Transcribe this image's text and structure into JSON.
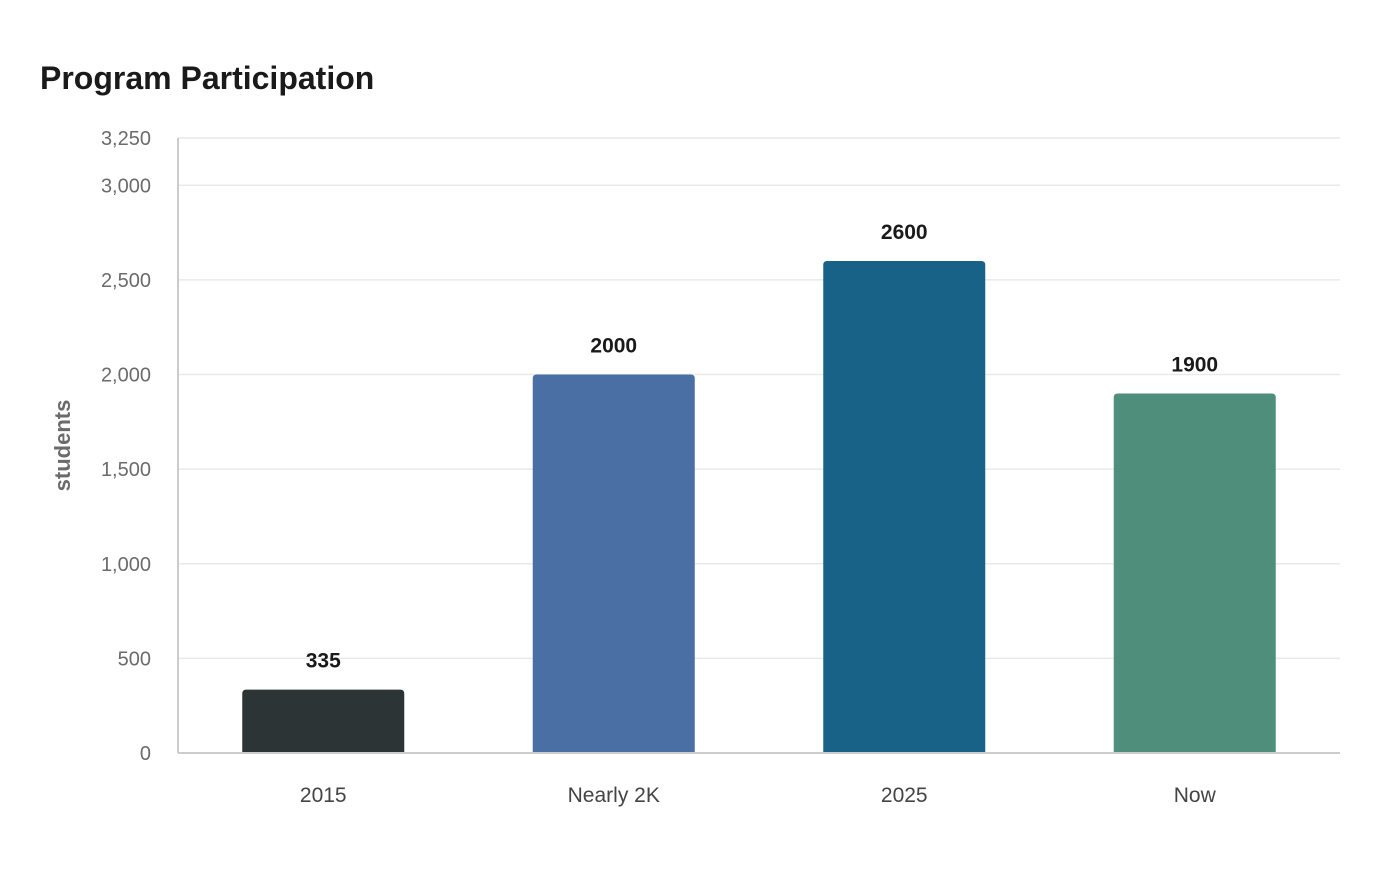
{
  "chart_data": {
    "type": "bar",
    "title": "Program Participation",
    "xlabel": "",
    "ylabel": "students",
    "categories": [
      "2015",
      "Nearly 2K",
      "2025",
      "Now"
    ],
    "values": [
      335,
      2000,
      2600,
      1900
    ],
    "data_labels": [
      "335",
      "2000",
      "2600",
      "1900"
    ],
    "colors": [
      "#2d3436",
      "#4a6fa5",
      "#186288",
      "#4e8e7b"
    ],
    "ylim": [
      0,
      3250
    ],
    "yticks": [
      0,
      500,
      1000,
      1500,
      2000,
      2500,
      3000,
      3250
    ],
    "ytick_labels": [
      "0",
      "500",
      "1,000",
      "1,500",
      "2,000",
      "2,500",
      "3,000",
      "3,250"
    ],
    "grid": true,
    "legend": "none"
  }
}
